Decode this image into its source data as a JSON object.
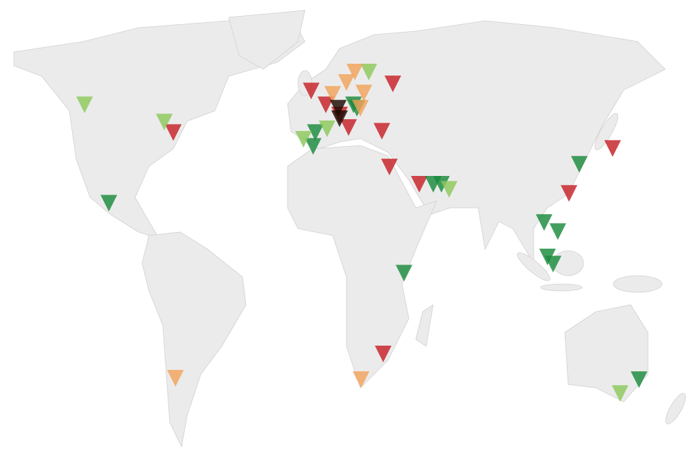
{
  "map": {
    "type": "world-marker-map",
    "marker_shape": "down-triangle",
    "land_color": "#ebebeb",
    "border_color": "#d0d0d0",
    "categories": {
      "red": "#c62026",
      "dark-green": "#1a8a3c",
      "light-green": "#8cc85a",
      "orange": "#f2a25a",
      "black": "#1a0a00"
    },
    "markers": [
      {
        "lon": -0.3,
        "lat": 51.4,
        "cat": "red"
      },
      {
        "lon": 37.7,
        "lat": 53.5,
        "cat": "red"
      },
      {
        "lon": -64.5,
        "lat": 39.1,
        "cat": "red"
      },
      {
        "lon": 32.6,
        "lat": 39.5,
        "cat": "red"
      },
      {
        "lon": 36.1,
        "lat": 28.9,
        "cat": "red"
      },
      {
        "lon": 50.0,
        "lat": 23.8,
        "cat": "red"
      },
      {
        "lon": 119.7,
        "lat": 21.1,
        "cat": "red"
      },
      {
        "lon": 140.0,
        "lat": 34.4,
        "cat": "red"
      },
      {
        "lon": 33.2,
        "lat": -26.4,
        "cat": "red"
      },
      {
        "lon": 6.5,
        "lat": 47.3,
        "cat": "red"
      },
      {
        "lon": 17.1,
        "lat": 40.6,
        "cat": "red"
      },
      {
        "lon": 12.9,
        "lat": 44.3,
        "cat": "red"
      },
      {
        "lon": -94.5,
        "lat": 18.2,
        "cat": "dark-green"
      },
      {
        "lon": 124.5,
        "lat": 29.7,
        "cat": "dark-green"
      },
      {
        "lon": 56.5,
        "lat": 23.8,
        "cat": "dark-green"
      },
      {
        "lon": 60.3,
        "lat": 23.8,
        "cat": "dark-green"
      },
      {
        "lon": 108.1,
        "lat": 12.5,
        "cat": "dark-green"
      },
      {
        "lon": 114.5,
        "lat": 9.8,
        "cat": "dark-green"
      },
      {
        "lon": 109.7,
        "lat": 2.3,
        "cat": "dark-green"
      },
      {
        "lon": 112.3,
        "lat": 0.2,
        "cat": "dark-green"
      },
      {
        "lon": 42.9,
        "lat": -2.5,
        "cat": "dark-green"
      },
      {
        "lon": 1.6,
        "lat": 39.1,
        "cat": "dark-green"
      },
      {
        "lon": 0.6,
        "lat": 35.0,
        "cat": "dark-green"
      },
      {
        "lon": 19.4,
        "lat": 47.3,
        "cat": "dark-green"
      },
      {
        "lon": 21.0,
        "lat": 46.3,
        "cat": "dark-green"
      },
      {
        "lon": 152.3,
        "lat": -34.0,
        "cat": "dark-green"
      },
      {
        "lon": -105.8,
        "lat": 47.3,
        "cat": "light-green"
      },
      {
        "lon": -68.7,
        "lat": 42.2,
        "cat": "light-green"
      },
      {
        "lon": -3.9,
        "lat": 37.1,
        "cat": "light-green"
      },
      {
        "lon": 7.1,
        "lat": 40.2,
        "cat": "light-green"
      },
      {
        "lon": 26.5,
        "lat": 57.0,
        "cat": "light-green"
      },
      {
        "lon": 63.9,
        "lat": 22.3,
        "cat": "light-green"
      },
      {
        "lon": 143.5,
        "lat": -38.1,
        "cat": "light-green"
      },
      {
        "lon": 20.0,
        "lat": 57.0,
        "cat": "orange"
      },
      {
        "lon": 16.1,
        "lat": 53.9,
        "cat": "orange"
      },
      {
        "lon": 24.2,
        "lat": 50.8,
        "cat": "orange"
      },
      {
        "lon": 9.7,
        "lat": 50.4,
        "cat": "orange"
      },
      {
        "lon": -63.5,
        "lat": -33.6,
        "cat": "orange"
      },
      {
        "lon": 22.9,
        "lat": -34.0,
        "cat": "orange"
      },
      {
        "lon": 22.6,
        "lat": 46.3,
        "cat": "orange"
      },
      {
        "lon": 12.3,
        "lat": 46.3,
        "cat": "black"
      },
      {
        "lon": 12.9,
        "lat": 43.2,
        "cat": "black"
      }
    ]
  }
}
